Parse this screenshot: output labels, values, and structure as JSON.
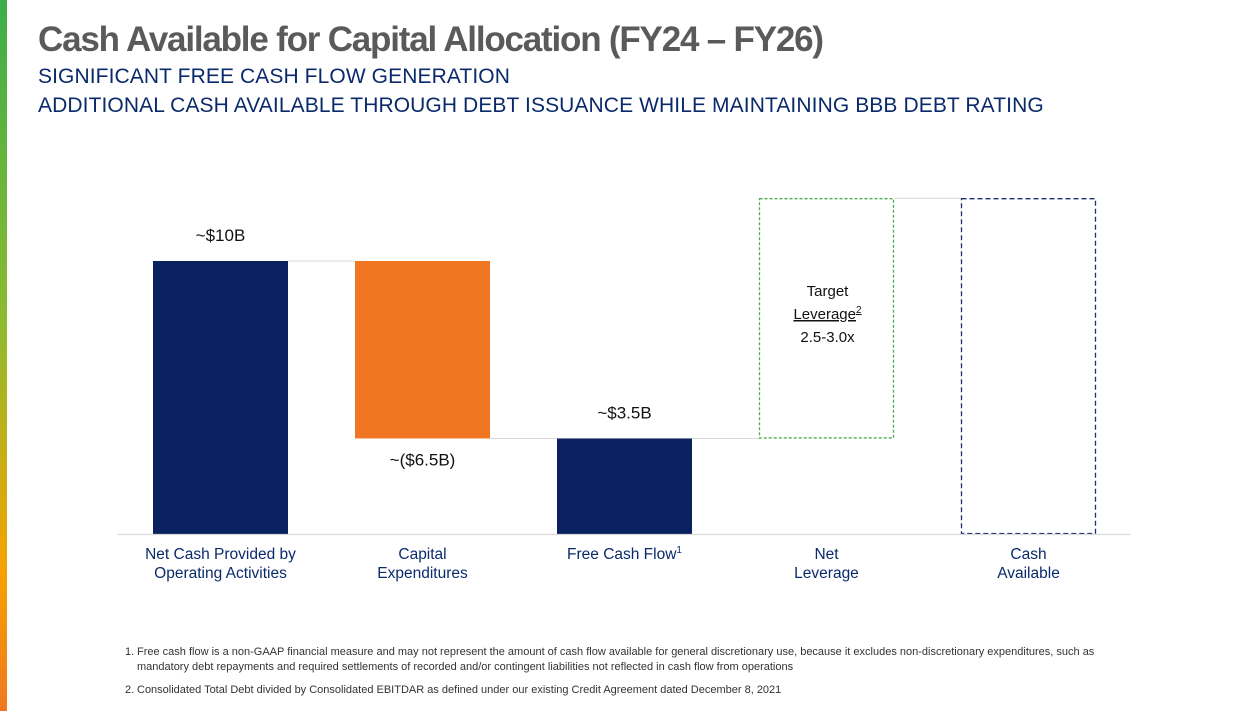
{
  "title": "Cash Available for Capital Allocation (FY24 – FY26)",
  "subtitles": [
    "SIGNIFICANT FREE CASH FLOW GENERATION",
    "ADDITIONAL CASH AVAILABLE THROUGH DEBT ISSUANCE WHILE MAINTAINING BBB DEBT RATING"
  ],
  "colors": {
    "navy": "#0a2160",
    "orange": "#f07621",
    "green_dashed": "#4caf50",
    "navy_dashed": "#1a2f6b",
    "axis": "#d9d9d9"
  },
  "chart_data": {
    "type": "waterfall",
    "title": "Cash Available for Capital Allocation (FY24 – FY26)",
    "units": "USD billions (approximate)",
    "ylim": [
      0,
      11
    ],
    "grid": false,
    "categories": [
      {
        "name": "Net Cash Provided by Operating Activities",
        "lines": [
          "Net Cash Provided by",
          "Operating Activities"
        ],
        "kind": "total",
        "start": 0,
        "end": 10,
        "label": "~$10B",
        "label_pos": "above",
        "color": "#0a2160"
      },
      {
        "name": "Capital Expenditures",
        "lines": [
          "Capital",
          "Expenditures"
        ],
        "kind": "decrease",
        "start": 10,
        "end": 3.5,
        "label": "~($6.5B)",
        "label_pos": "below",
        "color": "#f07621"
      },
      {
        "name": "Free Cash Flow",
        "lines": [
          "Free Cash Flow"
        ],
        "superscript": "1",
        "kind": "total",
        "start": 0,
        "end": 3.5,
        "label": "~$3.5B",
        "label_pos": "above",
        "color": "#0a2160"
      },
      {
        "name": "Net Leverage",
        "lines": [
          "Net",
          "Leverage"
        ],
        "kind": "undisclosed-increase",
        "start": 3.5,
        "end": 12.3,
        "color": "#4caf50",
        "box_text": {
          "line1": "Target",
          "line2": "Leverage",
          "line2_sup": "2",
          "line3": "2.5-3.0x"
        }
      },
      {
        "name": "Cash Available",
        "lines": [
          "Cash",
          "Available"
        ],
        "kind": "undisclosed-total",
        "start": 0,
        "end": 12.3,
        "color": "#1a2f6b"
      }
    ]
  },
  "footnotes": [
    {
      "num": "1.",
      "text": "Free cash flow is a non-GAAP financial measure and may not represent the amount of cash flow available for general discretionary use, because it excludes non-discretionary expenditures, such as mandatory debt repayments and required settlements of recorded and/or contingent liabilities not reflected in cash flow from operations"
    },
    {
      "num": "2.",
      "text": "Consolidated Total Debt divided by Consolidated EBITDAR as defined under our existing Credit Agreement dated December 8, 2021"
    }
  ]
}
